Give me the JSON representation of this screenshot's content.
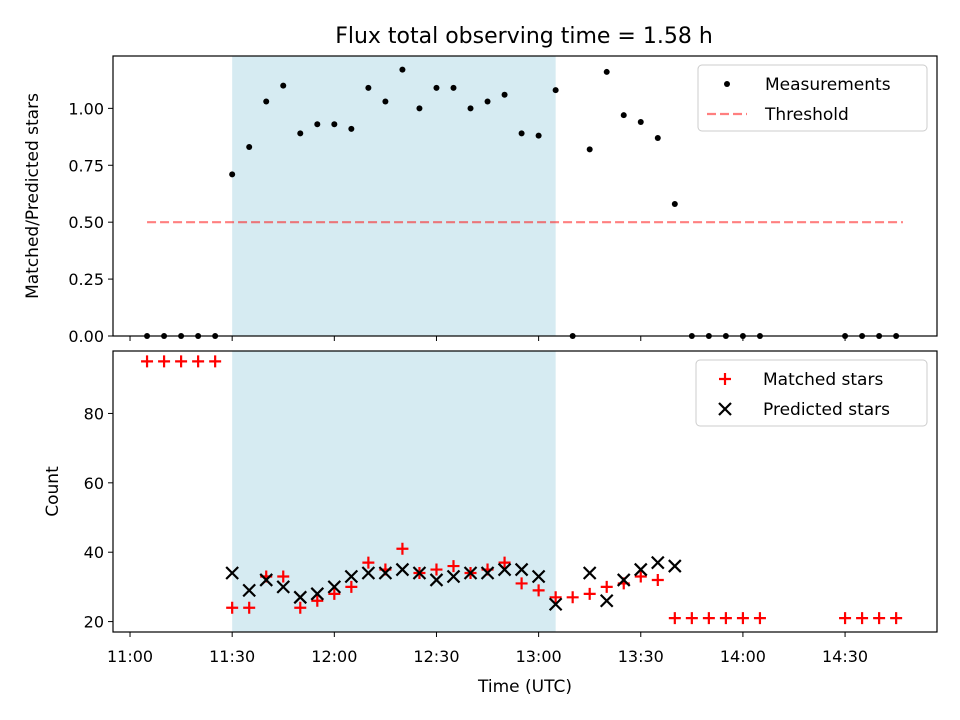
{
  "title": "Flux total observing time = 1.58 h",
  "colors": {
    "shade": "#add8e6",
    "measurement": "#000000",
    "threshold": "#ff0000",
    "matched": "#ff0000",
    "predicted": "#000000"
  },
  "chart_data": [
    {
      "type": "scatter",
      "ylabel": "Matched/Predicted stars",
      "xlim": [
        "10:55",
        "14:57"
      ],
      "ylim": [
        0,
        1.23
      ],
      "yticks": [
        "0.00",
        "0.25",
        "0.50",
        "0.75",
        "1.00"
      ],
      "shaded_region": {
        "start": "11:30",
        "end": "13:05"
      },
      "legend_position": "upper right",
      "legend": [
        "Measurements",
        "Threshold"
      ],
      "series": [
        {
          "name": "Measurements",
          "kind": "scatter",
          "marker": "dot",
          "points": [
            [
              "11:05",
              0
            ],
            [
              "11:10",
              0
            ],
            [
              "11:15",
              0
            ],
            [
              "11:20",
              0
            ],
            [
              "11:25",
              0
            ],
            [
              "11:30",
              0.71
            ],
            [
              "11:35",
              0.83
            ],
            [
              "11:40",
              1.03
            ],
            [
              "11:45",
              1.1
            ],
            [
              "11:50",
              0.89
            ],
            [
              "11:55",
              0.93
            ],
            [
              "12:00",
              0.93
            ],
            [
              "12:05",
              0.91
            ],
            [
              "12:10",
              1.09
            ],
            [
              "12:15",
              1.03
            ],
            [
              "12:20",
              1.17
            ],
            [
              "12:25",
              1.0
            ],
            [
              "12:30",
              1.09
            ],
            [
              "12:35",
              1.09
            ],
            [
              "12:40",
              1.0
            ],
            [
              "12:45",
              1.03
            ],
            [
              "12:50",
              1.06
            ],
            [
              "12:55",
              0.89
            ],
            [
              "13:00",
              0.88
            ],
            [
              "13:05",
              1.08
            ],
            [
              "13:10",
              0
            ],
            [
              "13:15",
              0.82
            ],
            [
              "13:20",
              1.16
            ],
            [
              "13:25",
              0.97
            ],
            [
              "13:30",
              0.94
            ],
            [
              "13:35",
              0.87
            ],
            [
              "13:40",
              0.58
            ],
            [
              "13:45",
              0
            ],
            [
              "13:50",
              0
            ],
            [
              "13:55",
              0
            ],
            [
              "14:00",
              0
            ],
            [
              "14:05",
              0
            ],
            [
              "14:30",
              0
            ],
            [
              "14:35",
              0
            ],
            [
              "14:40",
              0
            ],
            [
              "14:45",
              0
            ]
          ]
        },
        {
          "name": "Threshold",
          "kind": "line",
          "style": "dashed",
          "points": [
            [
              "11:05",
              0.5
            ],
            [
              "14:47",
              0.5
            ]
          ]
        }
      ]
    },
    {
      "type": "scatter",
      "xlabel": "Time (UTC)",
      "ylabel": "Count",
      "xlim": [
        "10:55",
        "14:57"
      ],
      "ylim": [
        17,
        98
      ],
      "yticks": [
        "20",
        "40",
        "60",
        "80"
      ],
      "xticks": [
        "11:00",
        "11:30",
        "12:00",
        "12:30",
        "13:00",
        "13:30",
        "14:00",
        "14:30"
      ],
      "shaded_region": {
        "start": "11:30",
        "end": "13:05"
      },
      "legend_position": "upper right",
      "legend": [
        "Matched stars",
        "Predicted stars"
      ],
      "series": [
        {
          "name": "Matched stars",
          "kind": "scatter",
          "marker": "plus",
          "points": [
            [
              "11:05",
              95
            ],
            [
              "11:10",
              95
            ],
            [
              "11:15",
              95
            ],
            [
              "11:20",
              95
            ],
            [
              "11:25",
              95
            ],
            [
              "11:30",
              24
            ],
            [
              "11:35",
              24
            ],
            [
              "11:40",
              33
            ],
            [
              "11:45",
              33
            ],
            [
              "11:50",
              24
            ],
            [
              "11:55",
              26
            ],
            [
              "12:00",
              28
            ],
            [
              "12:05",
              30
            ],
            [
              "12:10",
              37
            ],
            [
              "12:15",
              35
            ],
            [
              "12:20",
              41
            ],
            [
              "12:25",
              34
            ],
            [
              "12:30",
              35
            ],
            [
              "12:35",
              36
            ],
            [
              "12:40",
              34
            ],
            [
              "12:45",
              35
            ],
            [
              "12:50",
              37
            ],
            [
              "12:55",
              31
            ],
            [
              "13:00",
              29
            ],
            [
              "13:05",
              27
            ],
            [
              "13:10",
              27
            ],
            [
              "13:15",
              28
            ],
            [
              "13:20",
              30
            ],
            [
              "13:25",
              31
            ],
            [
              "13:30",
              33
            ],
            [
              "13:35",
              32
            ],
            [
              "13:40",
              21
            ],
            [
              "13:45",
              21
            ],
            [
              "13:50",
              21
            ],
            [
              "13:55",
              21
            ],
            [
              "14:00",
              21
            ],
            [
              "14:05",
              21
            ],
            [
              "14:30",
              21
            ],
            [
              "14:35",
              21
            ],
            [
              "14:40",
              21
            ],
            [
              "14:45",
              21
            ]
          ]
        },
        {
          "name": "Predicted stars",
          "kind": "scatter",
          "marker": "x",
          "points": [
            [
              "11:30",
              34
            ],
            [
              "11:35",
              29
            ],
            [
              "11:40",
              32
            ],
            [
              "11:45",
              30
            ],
            [
              "11:50",
              27
            ],
            [
              "11:55",
              28
            ],
            [
              "12:00",
              30
            ],
            [
              "12:05",
              33
            ],
            [
              "12:10",
              34
            ],
            [
              "12:15",
              34
            ],
            [
              "12:20",
              35
            ],
            [
              "12:25",
              34
            ],
            [
              "12:30",
              32
            ],
            [
              "12:35",
              33
            ],
            [
              "12:40",
              34
            ],
            [
              "12:45",
              34
            ],
            [
              "12:50",
              35
            ],
            [
              "12:55",
              35
            ],
            [
              "13:00",
              33
            ],
            [
              "13:05",
              25
            ],
            [
              "13:15",
              34
            ],
            [
              "13:20",
              26
            ],
            [
              "13:25",
              32
            ],
            [
              "13:30",
              35
            ],
            [
              "13:35",
              37
            ],
            [
              "13:40",
              36
            ]
          ]
        }
      ]
    }
  ]
}
